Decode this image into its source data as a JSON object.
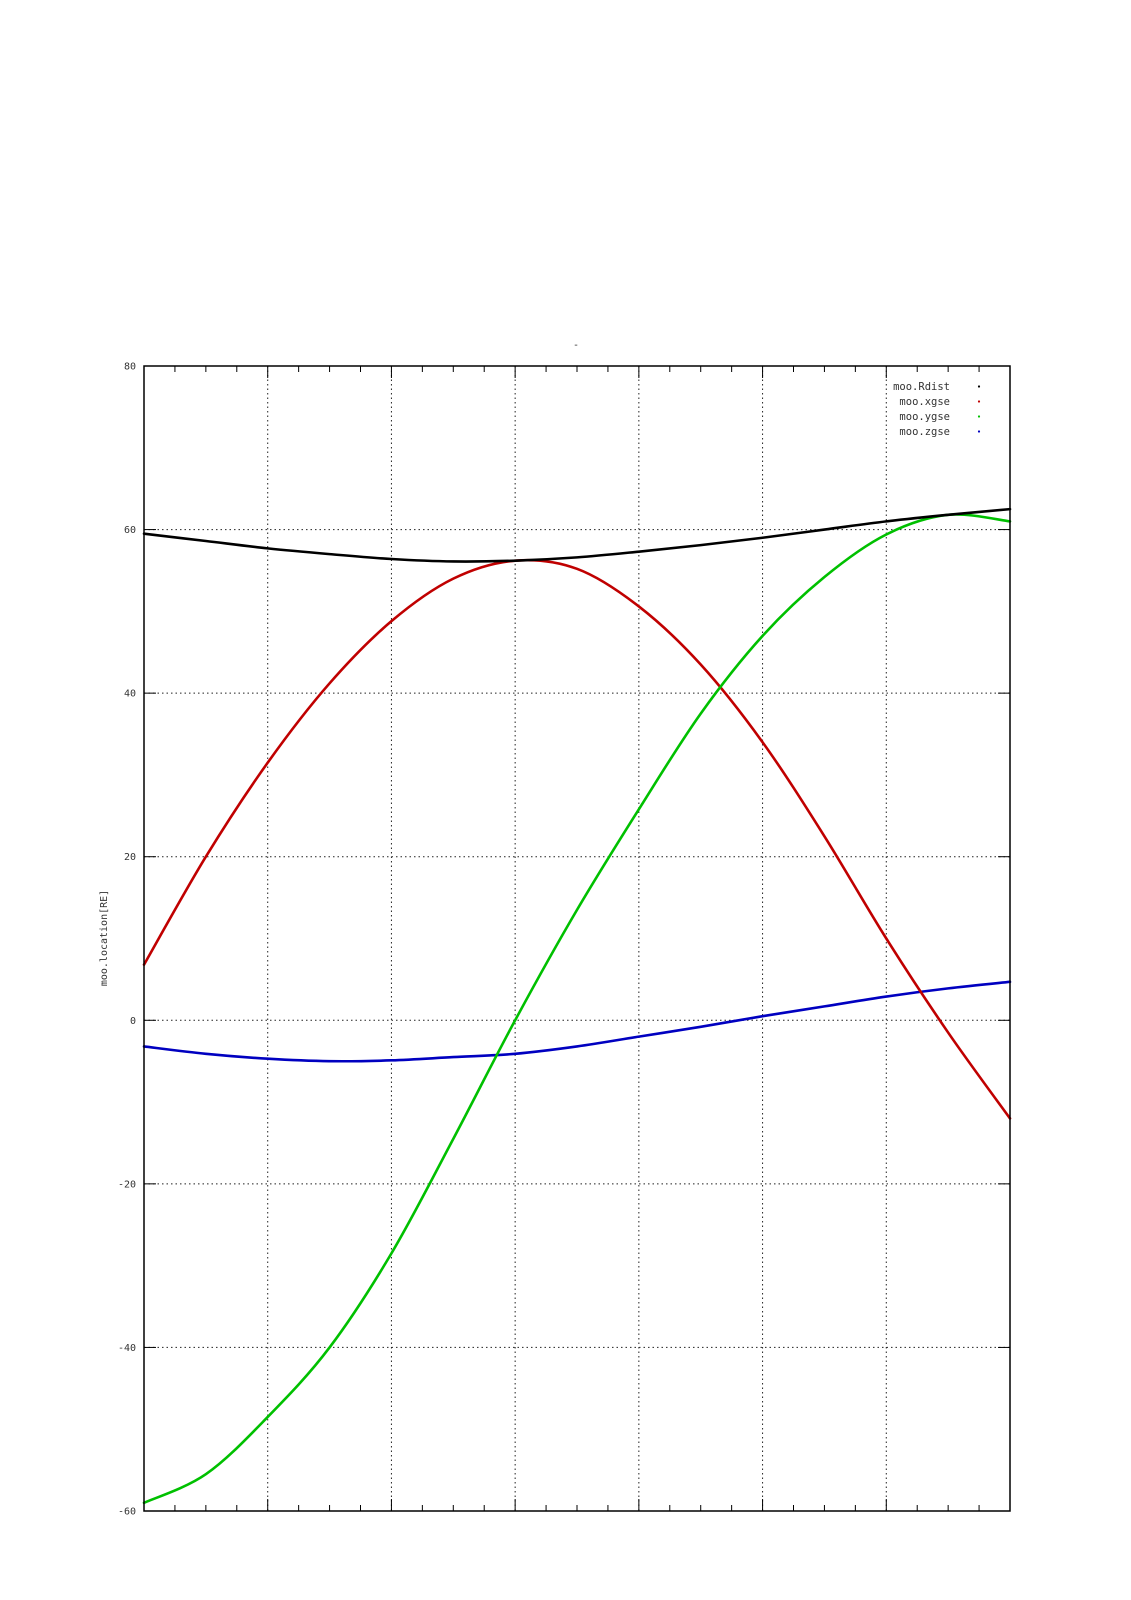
{
  "chart_data": {
    "type": "line",
    "title": "",
    "xlabel": "",
    "ylabel": "moo.location[RE]",
    "ylim": [
      -60,
      80
    ],
    "xlim": [
      0,
      7
    ],
    "yticks": [
      -60,
      -40,
      -20,
      0,
      20,
      40,
      60,
      80
    ],
    "grid": true,
    "legend_position": "top-right",
    "series": [
      {
        "name": "moo.Rdist",
        "color": "#000000",
        "x": [
          0,
          0.5,
          1,
          1.5,
          2,
          2.5,
          3,
          3.5,
          4,
          4.5,
          5,
          5.5,
          6,
          6.5,
          7
        ],
        "values": [
          59.5,
          58.6,
          57.7,
          57.0,
          56.4,
          56.1,
          56.2,
          56.6,
          57.3,
          58.1,
          59.0,
          60.0,
          61.0,
          61.8,
          62.5
        ]
      },
      {
        "name": "moo.xgse",
        "color": "#c00000",
        "x": [
          0,
          0.5,
          1,
          1.5,
          2,
          2.5,
          3,
          3.5,
          4,
          4.5,
          5,
          5.5,
          6,
          6.5,
          7
        ],
        "values": [
          6.8,
          20.0,
          31.5,
          41.2,
          48.8,
          54.0,
          56.2,
          55.2,
          50.6,
          43.5,
          34.0,
          22.5,
          10.0,
          -1.5,
          -12.0
        ]
      },
      {
        "name": "moo.ygse",
        "color": "#00c000",
        "x": [
          0,
          0.5,
          1,
          1.5,
          2,
          2.5,
          3,
          3.5,
          4,
          4.5,
          5,
          5.5,
          6,
          6.5,
          7
        ],
        "values": [
          -59.0,
          -55.5,
          -48.5,
          -40.0,
          -28.5,
          -14.5,
          0.0,
          13.5,
          25.8,
          37.5,
          47.0,
          54.2,
          59.4,
          61.8,
          61.0
        ]
      },
      {
        "name": "moo.zgse",
        "color": "#0000c0",
        "x": [
          0,
          0.5,
          1,
          1.5,
          2,
          2.5,
          3,
          3.5,
          4,
          4.5,
          5,
          5.5,
          6,
          6.5,
          7
        ],
        "values": [
          -3.2,
          -4.1,
          -4.7,
          -5.0,
          -4.9,
          -4.5,
          -4.1,
          -3.2,
          -2.0,
          -0.8,
          0.5,
          1.7,
          2.9,
          3.9,
          4.7
        ]
      }
    ]
  },
  "title_mark": "-"
}
